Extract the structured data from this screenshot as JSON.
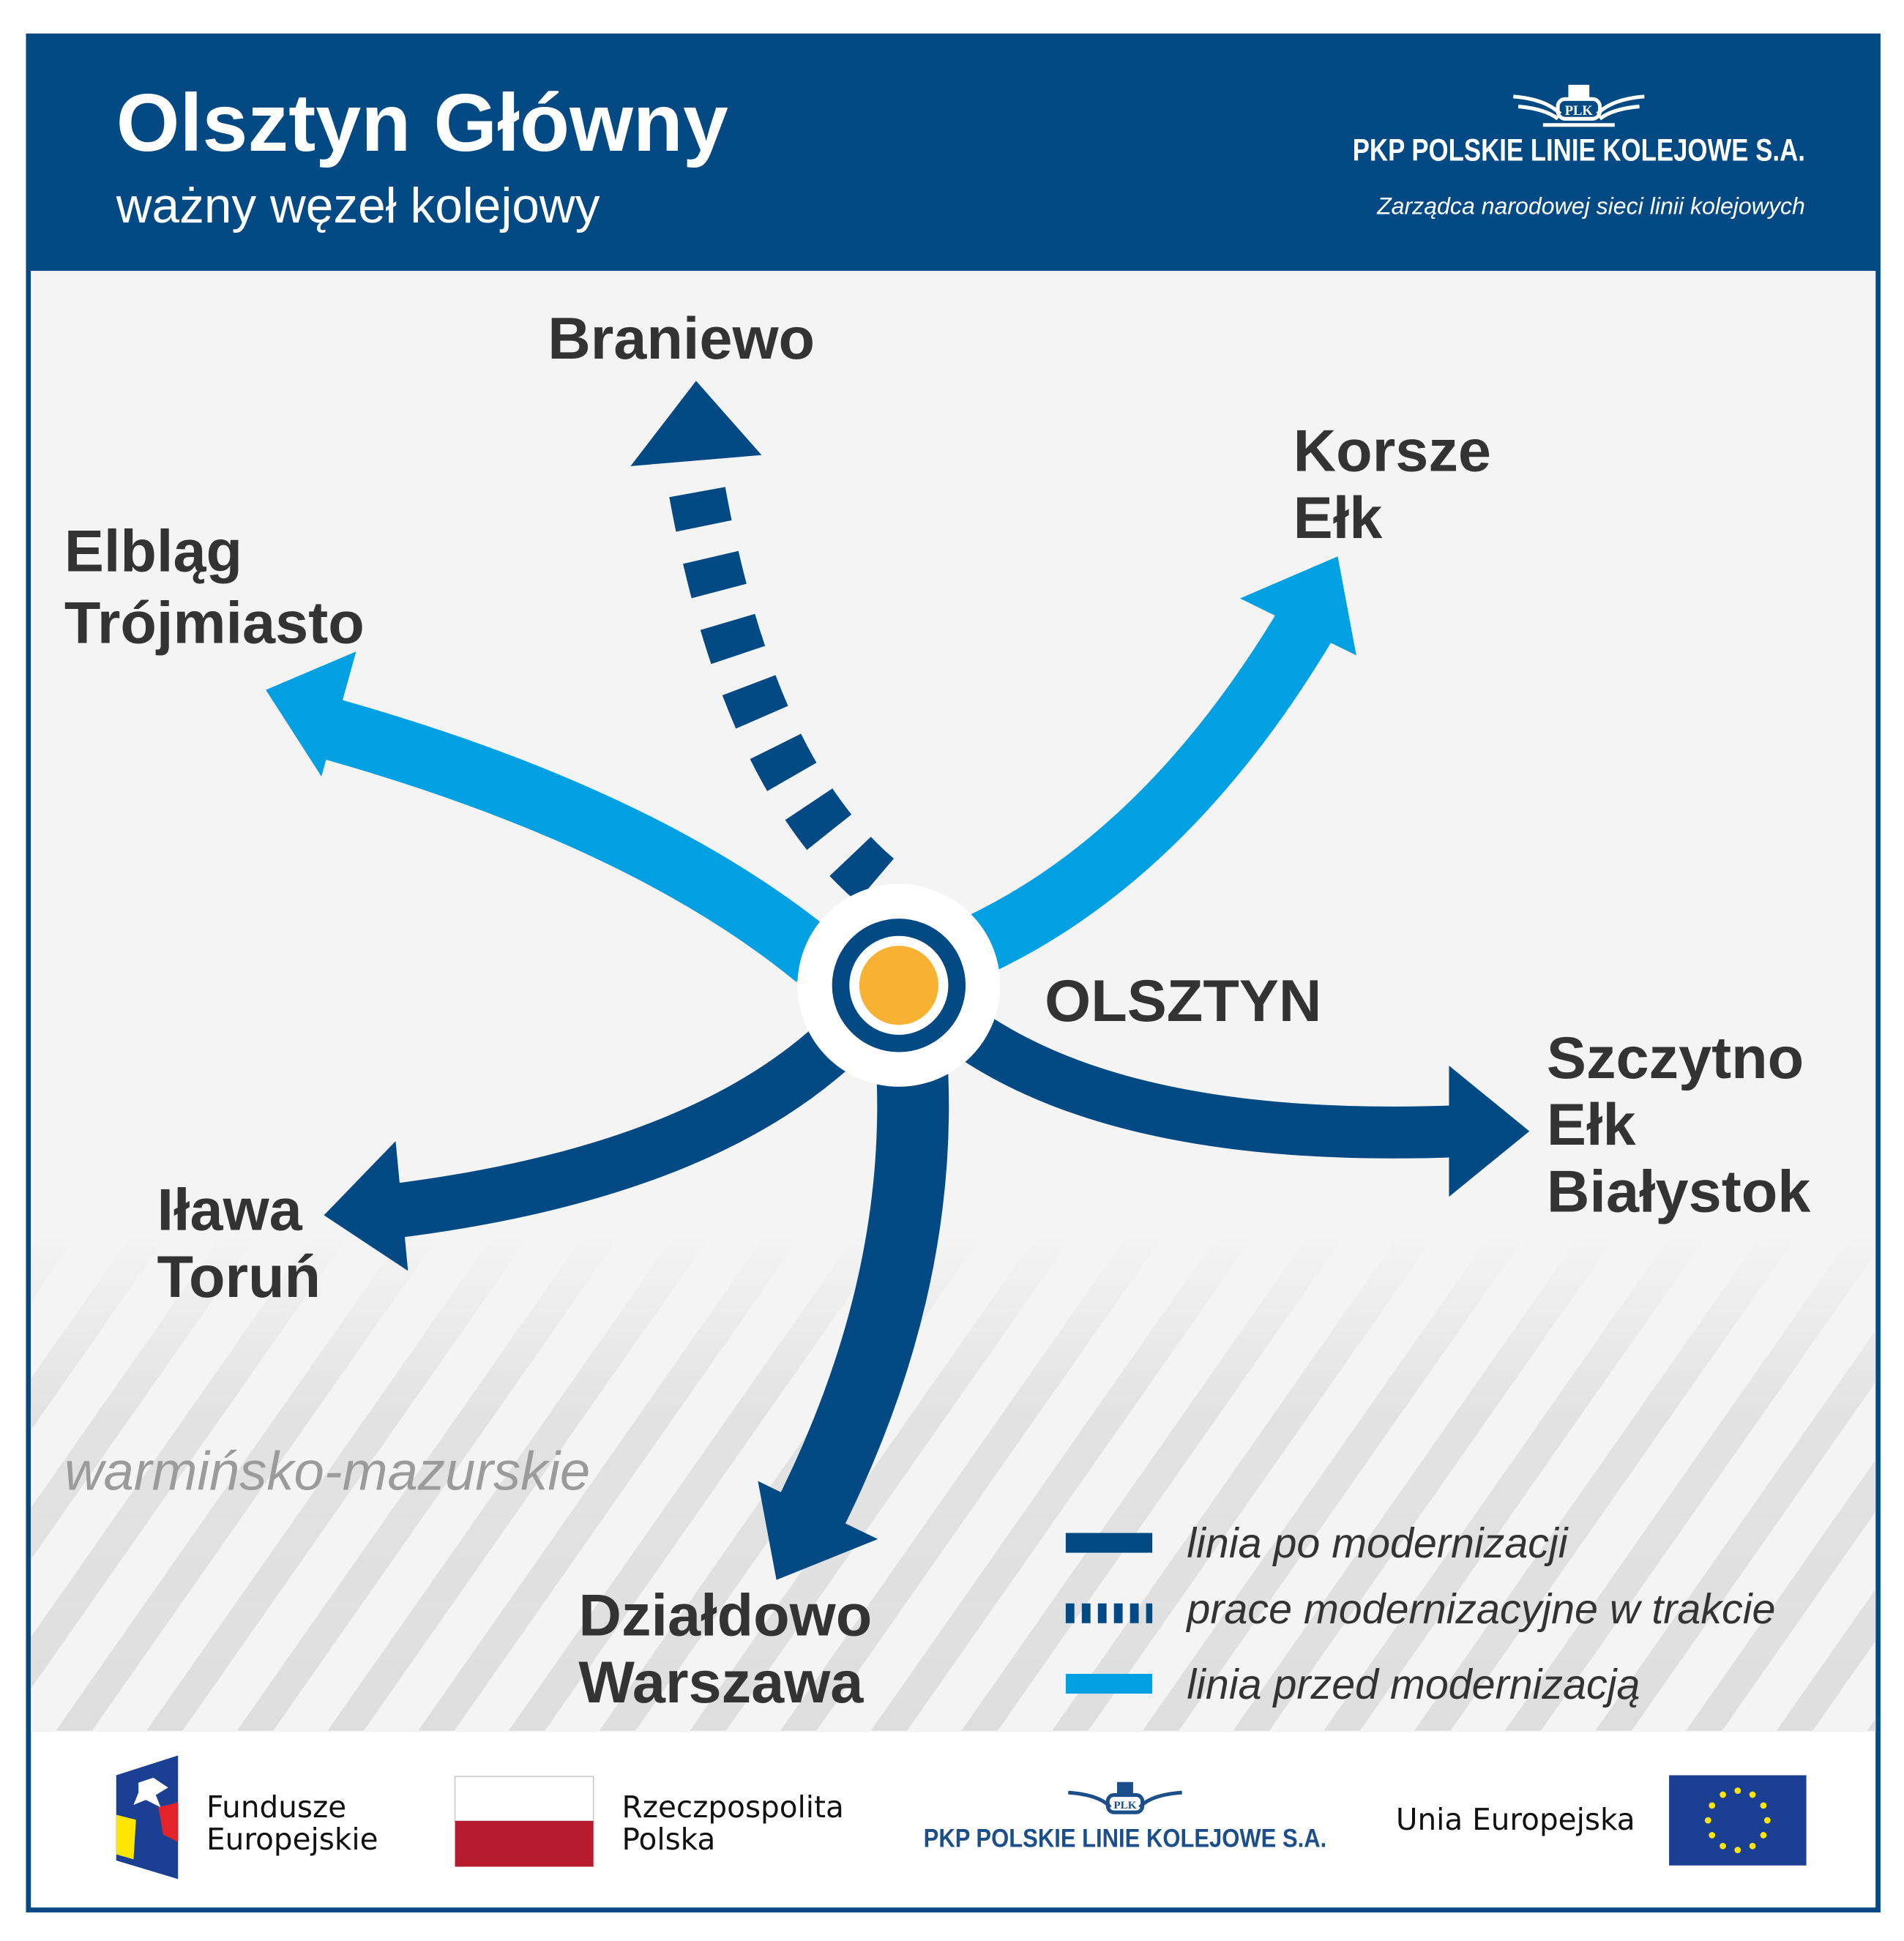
{
  "header": {
    "title": "Olsztyn Główny",
    "subtitle": "ważny węzeł kolejowy",
    "logo_badge": "PLK",
    "company": "PKP POLSKIE LINIE KOLEJOWE S.A.",
    "tagline": "Zarządca narodowej sieci linii kolejowych"
  },
  "colors": {
    "brand_blue": "#034a85",
    "light_blue": "#00a0e3",
    "node_orange": "#f7b234",
    "background": "#f4f4f4",
    "text": "#333333"
  },
  "diagram": {
    "center": "OLSZTYN",
    "region": "warmińsko-mazurskie",
    "directions": [
      {
        "lines": [
          "Braniewo"
        ],
        "status": "prace modernizacyjne w trakcie"
      },
      {
        "lines": [
          "Korsze",
          "Ełk"
        ],
        "status": "linia przed modernizacją"
      },
      {
        "lines": [
          "Elbląg",
          "Trójmiasto"
        ],
        "status": "linia przed modernizacją"
      },
      {
        "lines": [
          "Szczytno",
          "Ełk",
          "Białystok"
        ],
        "status": "linia po modernizacji"
      },
      {
        "lines": [
          "Iława",
          "Toruń"
        ],
        "status": "linia po modernizacji"
      },
      {
        "lines": [
          "Działdowo",
          "Warszawa"
        ],
        "status": "linia po modernizacji"
      }
    ]
  },
  "legend": [
    {
      "label": "linia po modernizacji",
      "style": "solid",
      "color": "#034a85"
    },
    {
      "label": "prace modernizacyjne w trakcie",
      "style": "dashed",
      "color": "#034a85"
    },
    {
      "label": "linia przed modernizacją",
      "style": "solid",
      "color": "#00a0e3"
    }
  ],
  "footer": {
    "fe_line1": "Fundusze",
    "fe_line2": "Europejskie",
    "rp_line1": "Rzeczpospolita",
    "rp_line2": "Polska",
    "plk_badge": "PLK",
    "plk": "PKP POLSKIE LINIE KOLEJOWE S.A.",
    "eu": "Unia Europejska"
  }
}
